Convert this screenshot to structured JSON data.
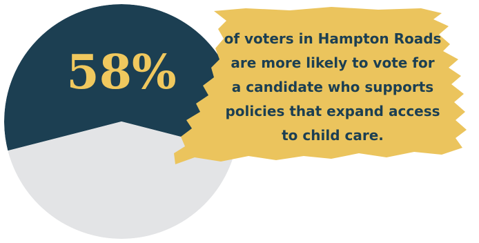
{
  "chart_data": {
    "type": "pie",
    "categories": [
      "",
      ""
    ],
    "values": [
      58,
      42
    ],
    "colors": {
      "highlight": "#1c3f52",
      "remainder": "#e3e4e6",
      "background": "#ffffff",
      "brush": "#ebc45d",
      "stat_text": "#f0c85e",
      "caption_text": "#1c3f52"
    },
    "stat_label": "58%",
    "caption_lines": [
      "of voters in Hampton Roads",
      "are more likely to vote for",
      "a candidate who supports",
      "policies that expand access",
      "to child care."
    ]
  }
}
